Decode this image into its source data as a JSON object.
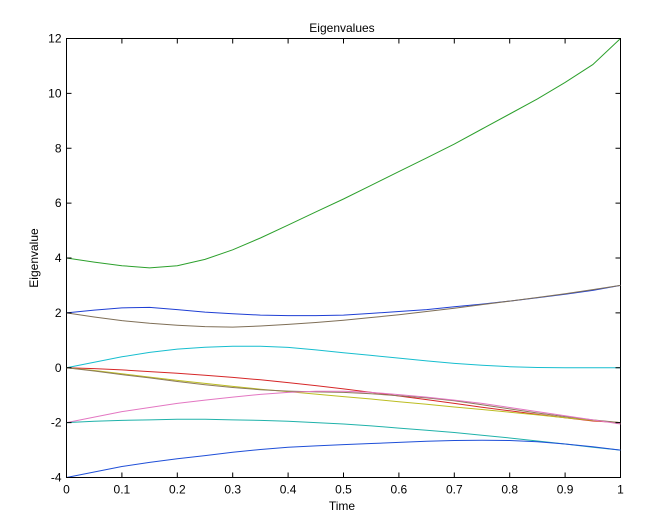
{
  "chart_data": {
    "type": "line",
    "title": "Eigenvalues",
    "xlabel": "Time",
    "ylabel": "Eigenvalue",
    "xlim": [
      0,
      1
    ],
    "ylim": [
      -4,
      12
    ],
    "x_ticks": [
      "0",
      "0.1",
      "0.2",
      "0.3",
      "0.4",
      "0.5",
      "0.6",
      "0.7",
      "0.8",
      "0.9",
      "1"
    ],
    "y_ticks": [
      "-4",
      "-2",
      "0",
      "2",
      "4",
      "6",
      "8",
      "10",
      "12"
    ],
    "x_tick_values": [
      0,
      0.1,
      0.2,
      0.3,
      0.4,
      0.5,
      0.6,
      0.7,
      0.8,
      0.9,
      1
    ],
    "y_tick_values": [
      -4,
      -2,
      0,
      2,
      4,
      6,
      8,
      10,
      12
    ],
    "grid": false,
    "x": [
      0,
      0.05,
      0.1,
      0.15,
      0.2,
      0.25,
      0.3,
      0.35,
      0.4,
      0.45,
      0.5,
      0.55,
      0.6,
      0.65,
      0.7,
      0.75,
      0.8,
      0.85,
      0.9,
      0.95,
      1
    ],
    "series": [
      {
        "color": "#2ca02c",
        "values": [
          4.0,
          3.85,
          3.72,
          3.64,
          3.72,
          3.95,
          4.3,
          4.73,
          5.2,
          5.68,
          6.15,
          6.65,
          7.15,
          7.65,
          8.15,
          8.7,
          9.25,
          9.8,
          10.4,
          11.05,
          12.0
        ]
      },
      {
        "color": "#1f3fd4",
        "values": [
          2.0,
          2.1,
          2.18,
          2.2,
          2.12,
          2.03,
          1.97,
          1.92,
          1.9,
          1.9,
          1.92,
          1.98,
          2.05,
          2.12,
          2.22,
          2.32,
          2.43,
          2.55,
          2.68,
          2.82,
          3.0
        ]
      },
      {
        "color": "#7f6f57",
        "values": [
          2.0,
          1.85,
          1.72,
          1.62,
          1.55,
          1.5,
          1.48,
          1.52,
          1.58,
          1.65,
          1.73,
          1.83,
          1.93,
          2.05,
          2.17,
          2.3,
          2.43,
          2.56,
          2.7,
          2.85,
          3.0
        ]
      },
      {
        "color": "#17becf",
        "values": [
          0.0,
          0.2,
          0.4,
          0.56,
          0.68,
          0.75,
          0.78,
          0.78,
          0.74,
          0.65,
          0.55,
          0.45,
          0.35,
          0.25,
          0.16,
          0.09,
          0.04,
          0.01,
          0.0,
          0.0,
          0.0
        ]
      },
      {
        "color": "#d62728",
        "values": [
          0.0,
          -0.03,
          -0.08,
          -0.14,
          -0.2,
          -0.27,
          -0.35,
          -0.44,
          -0.54,
          -0.65,
          -0.77,
          -0.9,
          -1.03,
          -1.16,
          -1.3,
          -1.44,
          -1.57,
          -1.7,
          -1.82,
          -1.94,
          -2.0
        ]
      },
      {
        "color": "#bcbd22",
        "values": [
          0.0,
          -0.1,
          -0.22,
          -0.34,
          -0.46,
          -0.57,
          -0.68,
          -0.78,
          -0.87,
          -0.96,
          -1.05,
          -1.14,
          -1.24,
          -1.33,
          -1.43,
          -1.52,
          -1.62,
          -1.72,
          -1.82,
          -1.92,
          -2.0
        ]
      },
      {
        "color": "#8c7a5b",
        "values": [
          0.0,
          -0.12,
          -0.25,
          -0.37,
          -0.5,
          -0.62,
          -0.72,
          -0.8,
          -0.85,
          -0.88,
          -0.9,
          -0.95,
          -1.02,
          -1.1,
          -1.2,
          -1.35,
          -1.5,
          -1.65,
          -1.78,
          -1.9,
          -2.0
        ]
      },
      {
        "color": "#e377c2",
        "values": [
          -2.0,
          -1.8,
          -1.6,
          -1.45,
          -1.3,
          -1.18,
          -1.07,
          -0.97,
          -0.9,
          -0.86,
          -0.86,
          -0.9,
          -0.98,
          -1.07,
          -1.18,
          -1.3,
          -1.45,
          -1.6,
          -1.75,
          -1.9,
          -2.05
        ]
      },
      {
        "color": "#20b2aa",
        "values": [
          -2.0,
          -1.95,
          -1.92,
          -1.9,
          -1.88,
          -1.88,
          -1.9,
          -1.92,
          -1.95,
          -2.0,
          -2.05,
          -2.12,
          -2.2,
          -2.28,
          -2.36,
          -2.46,
          -2.56,
          -2.67,
          -2.78,
          -2.9,
          -3.0
        ]
      },
      {
        "color": "#1f4fd8",
        "values": [
          -4.0,
          -3.8,
          -3.6,
          -3.45,
          -3.32,
          -3.2,
          -3.08,
          -2.98,
          -2.9,
          -2.85,
          -2.8,
          -2.76,
          -2.72,
          -2.68,
          -2.65,
          -2.64,
          -2.65,
          -2.7,
          -2.78,
          -2.88,
          -3.0
        ]
      }
    ]
  }
}
